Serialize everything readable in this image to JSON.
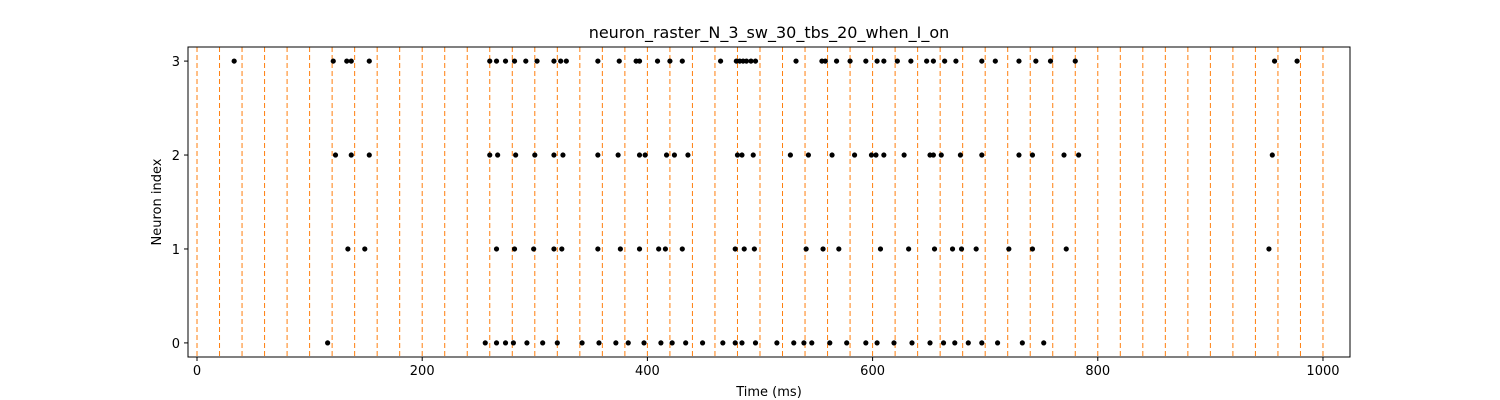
{
  "chart_data": {
    "type": "scatter",
    "title": "neuron_raster_N_3_sw_30_tbs_20_when_I_on",
    "xlabel": "Time (ms)",
    "ylabel": "Neuron index",
    "xlim": [
      -8,
      1024
    ],
    "ylim": [
      -0.15,
      3.15
    ],
    "xticks": [
      0,
      200,
      400,
      600,
      800,
      1000
    ],
    "yticks": [
      0,
      1,
      2,
      3
    ],
    "grid": false,
    "marker_color": "#000000",
    "vline_color": "#ff7f0e",
    "vlines": [
      0,
      20,
      40,
      60,
      80,
      100,
      120,
      140,
      160,
      180,
      200,
      220,
      240,
      260,
      280,
      300,
      320,
      340,
      360,
      380,
      400,
      420,
      440,
      460,
      480,
      500,
      520,
      540,
      560,
      580,
      600,
      620,
      640,
      660,
      680,
      700,
      720,
      740,
      760,
      780,
      800,
      820,
      840,
      860,
      880,
      900,
      920,
      940,
      960,
      980,
      1000
    ],
    "series": [
      {
        "neuron": 0,
        "spike_times": [
          116,
          256,
          266,
          274,
          281,
          293,
          307,
          320,
          342,
          357,
          372,
          383,
          397,
          412,
          422,
          434,
          449,
          467,
          478,
          484,
          496,
          515,
          530,
          539,
          546,
          562,
          577,
          594,
          604,
          619,
          635,
          651,
          663,
          673,
          685,
          697,
          711,
          733,
          752
        ]
      },
      {
        "neuron": 1,
        "spike_times": [
          134,
          149,
          266,
          282,
          299,
          317,
          324,
          356,
          376,
          393,
          410,
          416,
          431,
          478,
          486,
          495,
          541,
          556,
          570,
          607,
          632,
          655,
          671,
          679,
          692,
          721,
          742,
          772,
          952
        ]
      },
      {
        "neuron": 2,
        "spike_times": [
          123,
          137,
          153,
          260,
          267,
          283,
          300,
          317,
          325,
          356,
          374,
          393,
          398,
          417,
          424,
          436,
          480,
          484,
          494,
          527,
          543,
          564,
          584,
          599,
          603,
          610,
          628,
          651,
          654,
          661,
          678,
          697,
          730,
          742,
          770,
          783,
          955
        ]
      },
      {
        "neuron": 3,
        "spike_times": [
          33,
          121,
          133,
          137,
          153,
          260,
          266,
          274,
          282,
          292,
          302,
          317,
          323,
          328,
          356,
          375,
          390,
          393,
          409,
          420,
          431,
          465,
          479,
          482,
          485,
          488,
          492,
          496,
          532,
          555,
          558,
          568,
          580,
          594,
          604,
          610,
          622,
          634,
          648,
          654,
          664,
          674,
          697,
          709,
          730,
          745,
          758,
          780,
          957,
          977
        ]
      }
    ]
  }
}
